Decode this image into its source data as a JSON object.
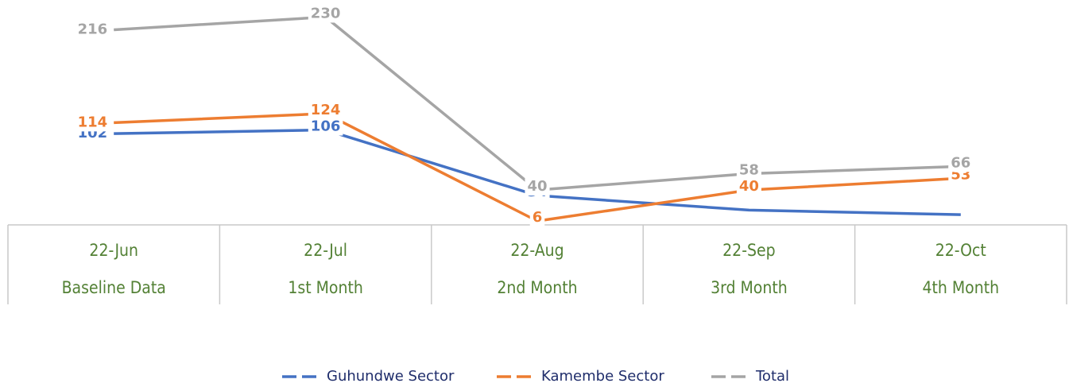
{
  "chart_data": {
    "type": "line",
    "categories": [
      "22-Jun",
      "22-Jul",
      "22-Aug",
      "22-Sep",
      "22-Oct"
    ],
    "category_subtitles": [
      "Baseline Data",
      "1st Month",
      "2nd Month",
      "3rd Month",
      "4th Month"
    ],
    "series": [
      {
        "name": "Guhundwe Sector",
        "color": "#4472c4",
        "values": [
          102,
          106,
          34,
          18,
          13
        ],
        "value_labels": [
          "102",
          "106",
          "34",
          null,
          null
        ]
      },
      {
        "name": "Kamembe Sector",
        "color": "#ed7d31",
        "values": [
          114,
          124,
          6,
          40,
          53
        ]
      },
      {
        "name": "Total",
        "color": "#a5a5a5",
        "values": [
          216,
          230,
          40,
          58,
          66
        ]
      }
    ],
    "ylim": [
      0,
      240
    ]
  }
}
